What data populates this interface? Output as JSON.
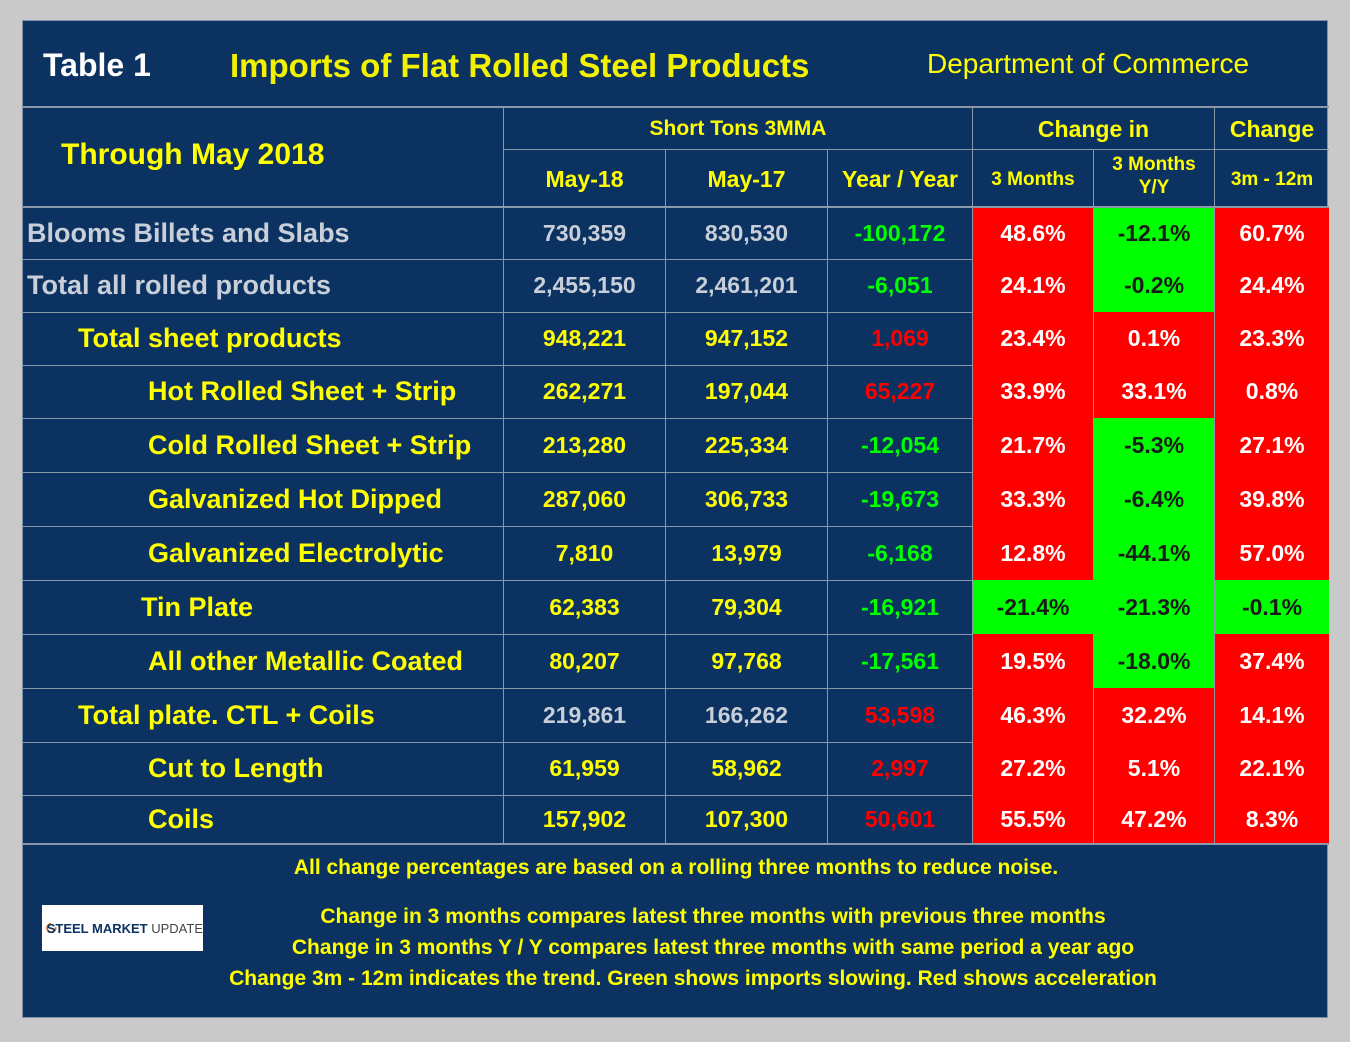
{
  "title": {
    "table_label": "Table 1",
    "main": "Imports of Flat Rolled Steel Products",
    "source": "Department of Commerce"
  },
  "header": {
    "through": "Through May 2018",
    "short_tons": "Short Tons 3MMA",
    "change_in": "Change in",
    "change": "Change",
    "col_may18": "May-18",
    "col_may17": "May-17",
    "col_yoy": "Year / Year",
    "col_3m": "3 Months",
    "col_3myy_line1": "3 Months",
    "col_3myy_line2": "Y/Y",
    "col_3m12m": "3m - 12m"
  },
  "rows": [
    {
      "label": "Blooms Billets and Slabs",
      "may18": "730,359",
      "may17": "830,530",
      "yoy": "-100,172",
      "yoy_color": "neg",
      "m3": "48.6%",
      "m3_bg": "red",
      "m3yy": "-12.1%",
      "m3yy_bg": "green",
      "m3m12": "60.7%",
      "m3m12_bg": "red"
    },
    {
      "label": "Total all rolled products",
      "may18": "2,455,150",
      "may17": "2,461,201",
      "yoy": "-6,051",
      "yoy_color": "neg",
      "m3": "24.1%",
      "m3_bg": "red",
      "m3yy": "-0.2%",
      "m3yy_bg": "green",
      "m3m12": "24.4%",
      "m3m12_bg": "red"
    },
    {
      "label": "Total sheet products",
      "may18": "948,221",
      "may17": "947,152",
      "yoy": "1,069",
      "yoy_color": "pos",
      "m3": "23.4%",
      "m3_bg": "red",
      "m3yy": "0.1%",
      "m3yy_bg": "red",
      "m3m12": "23.3%",
      "m3m12_bg": "red"
    },
    {
      "label": "Hot Rolled Sheet + Strip",
      "may18": "262,271",
      "may17": "197,044",
      "yoy": "65,227",
      "yoy_color": "pos",
      "m3": "33.9%",
      "m3_bg": "red",
      "m3yy": "33.1%",
      "m3yy_bg": "red",
      "m3m12": "0.8%",
      "m3m12_bg": "red"
    },
    {
      "label": "Cold Rolled Sheet + Strip",
      "may18": "213,280",
      "may17": "225,334",
      "yoy": "-12,054",
      "yoy_color": "neg",
      "m3": "21.7%",
      "m3_bg": "red",
      "m3yy": "-5.3%",
      "m3yy_bg": "green",
      "m3m12": "27.1%",
      "m3m12_bg": "red"
    },
    {
      "label": "Galvanized Hot Dipped",
      "may18": "287,060",
      "may17": "306,733",
      "yoy": "-19,673",
      "yoy_color": "neg",
      "m3": "33.3%",
      "m3_bg": "red",
      "m3yy": "-6.4%",
      "m3yy_bg": "green",
      "m3m12": "39.8%",
      "m3m12_bg": "red"
    },
    {
      "label": "Galvanized Electrolytic",
      "may18": "7,810",
      "may17": "13,979",
      "yoy": "-6,168",
      "yoy_color": "neg",
      "m3": "12.8%",
      "m3_bg": "red",
      "m3yy": "-44.1%",
      "m3yy_bg": "green",
      "m3m12": "57.0%",
      "m3m12_bg": "red"
    },
    {
      "label": "Tin Plate",
      "may18": "62,383",
      "may17": "79,304",
      "yoy": "-16,921",
      "yoy_color": "neg",
      "m3": "-21.4%",
      "m3_bg": "green",
      "m3yy": "-21.3%",
      "m3yy_bg": "green",
      "m3m12": "-0.1%",
      "m3m12_bg": "green"
    },
    {
      "label": "All other Metallic Coated",
      "may18": "80,207",
      "may17": "97,768",
      "yoy": "-17,561",
      "yoy_color": "neg",
      "m3": "19.5%",
      "m3_bg": "red",
      "m3yy": "-18.0%",
      "m3yy_bg": "green",
      "m3m12": "37.4%",
      "m3m12_bg": "red"
    },
    {
      "label": "Total plate. CTL + Coils",
      "may18": "219,861",
      "may17": "166,262",
      "yoy": "53,598",
      "yoy_color": "pos",
      "m3": "46.3%",
      "m3_bg": "red",
      "m3yy": "32.2%",
      "m3yy_bg": "red",
      "m3m12": "14.1%",
      "m3m12_bg": "red"
    },
    {
      "label": "Cut to Length",
      "may18": "61,959",
      "may17": "58,962",
      "yoy": "2,997",
      "yoy_color": "pos",
      "m3": "27.2%",
      "m3_bg": "red",
      "m3yy": "5.1%",
      "m3yy_bg": "red",
      "m3m12": "22.1%",
      "m3m12_bg": "red"
    },
    {
      "label": "Coils",
      "may18": "157,902",
      "may17": "107,300",
      "yoy": "50,601",
      "yoy_color": "pos",
      "m3": "55.5%",
      "m3_bg": "red",
      "m3yy": "47.2%",
      "m3yy_bg": "red",
      "m3m12": "8.3%",
      "m3m12_bg": "red"
    }
  ],
  "footer": {
    "note1": "All change percentages are based on a rolling three months to reduce noise.",
    "note2": "Change in 3 months compares latest three months with previous three months",
    "note3": "Change in 3 months  Y / Y compares latest three months with same period a year ago",
    "note4": "Change 3m - 12m indicates the trend. Green shows imports slowing. Red shows acceleration"
  },
  "logo": {
    "name": "STEEL MARKET",
    "suffix": "UPDATE"
  },
  "colors": {
    "background": "#0b3261",
    "header_text": "#ffff00",
    "red_cell": "#ff0000",
    "green_cell": "#00ff00"
  }
}
